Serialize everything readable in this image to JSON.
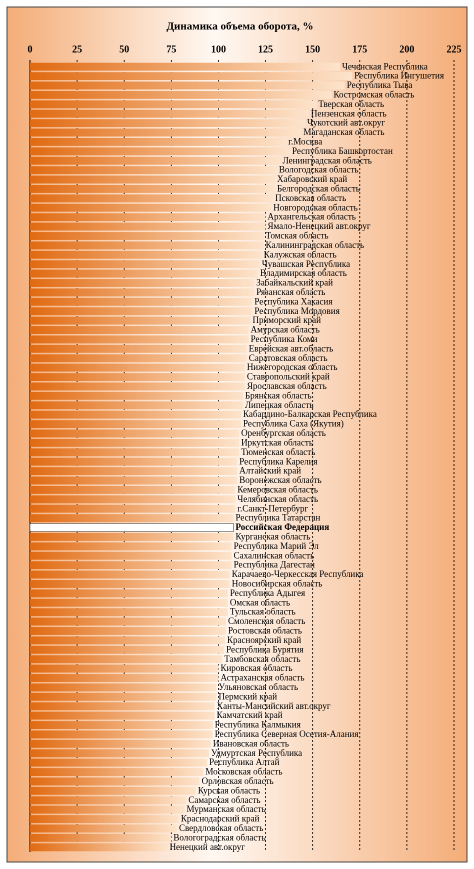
{
  "chart_data": {
    "type": "hbar",
    "title": "Динамика объема оборота, %",
    "categories": [
      "Чеченская Республика",
      "Республика Ингушетия",
      "Республика Тыва",
      "Костромская область",
      "Тверская область",
      "Пензенская область",
      "Чукотский авт.округ",
      "Магаданская область",
      "г.Москва",
      "Республика Башкортостан",
      "Ленинградская область",
      "Вологодская область",
      "Хабаровский край",
      "Белгородская область",
      "Псковская область",
      "Новгородская область",
      "Архангельская область",
      "Ямало-Ненецкий авт.округ",
      "Томская область",
      "Калининградская область",
      "Калужская область",
      "Чувашская Республика",
      "Владимирская область",
      "Забайкальский край",
      "Рязанская область",
      "Республика Хакасия",
      "Республика Мордовия",
      "Приморский край",
      "Амурская область",
      "Республика Коми",
      "Еврейская авт.область",
      "Саратовская область",
      "Нижегородская область",
      "Ставропольский край",
      "Ярославская область",
      "Брянская область",
      "Липецкая область",
      "Кабардино-Балкарская Республика",
      "Республика Саха (Якутия)",
      "Оренбургская область",
      "Иркутская область",
      "Тюменская область",
      "Республика Карелия",
      "Алтайский край",
      "Воронежская область",
      "Кемеровская область",
      "Челябинская область",
      "г.Санкт-Петербург",
      "Республика Татарстан",
      "Российская Федерация",
      "Курганская область",
      "Республика Марий Эл",
      "Сахалинская область",
      "Республика Дагестан",
      "Карачаево-Черкесская Республика",
      "Новосибирская область",
      "Республика Адыгея",
      "Омская область",
      "Тульская область",
      "Смоленская область",
      "Ростовская область",
      "Красноярский край",
      "Республика Бурятия",
      "Тамбовская область",
      "Кировская область",
      "Астраханская область",
      "Ульяновская область",
      "Пермский край",
      "Ханты-Мансийский авт.округ",
      "Камчатский край",
      "Республика Калмыкия",
      "Республика Северная Осетия-Алания",
      "Ивановская область",
      "Удмуртская Республика",
      "Республика Алтай",
      "Московская область",
      "Орловская область",
      "Курская область",
      "Самарская область",
      "Мурманская область",
      "Краснодарский край",
      "Свердловская область",
      "Вологоградская область",
      "Ненецкий авт.округ"
    ],
    "values": [
      164.5,
      171,
      167,
      160,
      152,
      148,
      146,
      144,
      136,
      138,
      133,
      131,
      130,
      130,
      129,
      128,
      125,
      125,
      124,
      124,
      123,
      122,
      121,
      119,
      119,
      118,
      118,
      117,
      116,
      116,
      115,
      115,
      114,
      114,
      114,
      113,
      113,
      112,
      112,
      111,
      111,
      111,
      110,
      110,
      110,
      109,
      109,
      109,
      108,
      108,
      108,
      107,
      107,
      107,
      106,
      106,
      105,
      105,
      105,
      104,
      104,
      103.5,
      103,
      102,
      100,
      100,
      99,
      99,
      98,
      98,
      97,
      97,
      96,
      95,
      94,
      92,
      90,
      88,
      83,
      82,
      79,
      78,
      75,
      73
    ],
    "color": "#e5781e",
    "highlight_index": 49,
    "highlight_color": "#ffffff",
    "xlim": [
      0,
      225
    ],
    "xticks": [
      0,
      25,
      50,
      75,
      100,
      125,
      150,
      175,
      200,
      225
    ],
    "grid": true
  }
}
